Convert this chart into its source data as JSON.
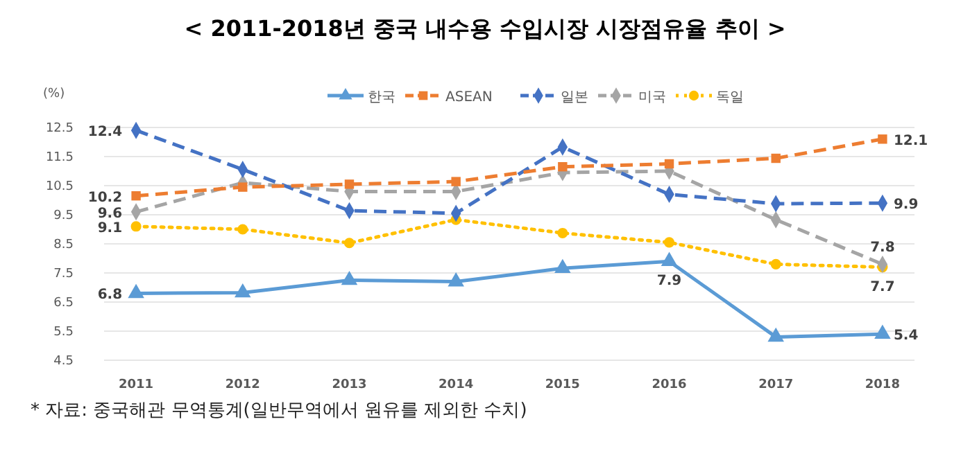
{
  "chart_data": {
    "type": "line",
    "title": "< 2011-2018년 중국 내수용 수입시장 시장점유율 추이 >",
    "ylabel": "(%)",
    "categories": [
      "2011",
      "2012",
      "2013",
      "2014",
      "2015",
      "2016",
      "2017",
      "2018"
    ],
    "series": [
      {
        "name": "한국",
        "color": "#5b9bd5",
        "marker": "triangle",
        "line_style": "solid",
        "values": [
          6.8,
          6.82,
          7.25,
          7.2,
          7.66,
          7.9,
          5.3,
          5.4
        ],
        "value_labels": [
          "6.8",
          null,
          null,
          null,
          null,
          "7.9",
          null,
          "5.4"
        ]
      },
      {
        "name": "ASEAN",
        "color": "#ed7d31",
        "marker": "square",
        "line_style": "dashed",
        "values": [
          10.15,
          10.45,
          10.55,
          10.64,
          11.15,
          11.25,
          11.44,
          12.1
        ],
        "value_labels": [
          "10.2",
          null,
          null,
          null,
          null,
          null,
          null,
          "12.1"
        ]
      },
      {
        "name": "일본",
        "color": "#4472c4",
        "marker": "diamond",
        "line_style": "dashed",
        "values": [
          12.4,
          11.06,
          9.64,
          9.55,
          11.83,
          10.2,
          9.88,
          9.9
        ],
        "value_labels": [
          "12.4",
          null,
          null,
          null,
          null,
          null,
          null,
          "9.9"
        ]
      },
      {
        "name": "미국",
        "color": "#a5a5a5",
        "marker": "diamond",
        "line_style": "dashed",
        "values": [
          9.6,
          10.6,
          10.3,
          10.3,
          10.95,
          11.0,
          9.33,
          7.8
        ],
        "value_labels": [
          "9.6",
          null,
          null,
          null,
          null,
          null,
          null,
          "7.8"
        ]
      },
      {
        "name": "독일",
        "color": "#ffc000",
        "marker": "circle",
        "line_style": "dotted",
        "values": [
          9.1,
          9.0,
          8.53,
          9.33,
          8.87,
          8.55,
          7.8,
          7.7
        ],
        "value_labels": [
          "9.1",
          null,
          null,
          null,
          null,
          null,
          null,
          "7.7"
        ]
      }
    ],
    "ylim": [
      4.5,
      12.5
    ],
    "yticks": [
      4.5,
      5.5,
      6.5,
      7.5,
      8.5,
      9.5,
      10.5,
      11.5,
      12.5
    ],
    "grid": "y",
    "legend": "top",
    "annotations": [
      "* 자료: 중국해관 무역통계(일반무역에서 원유를 제외한 수치)"
    ]
  }
}
